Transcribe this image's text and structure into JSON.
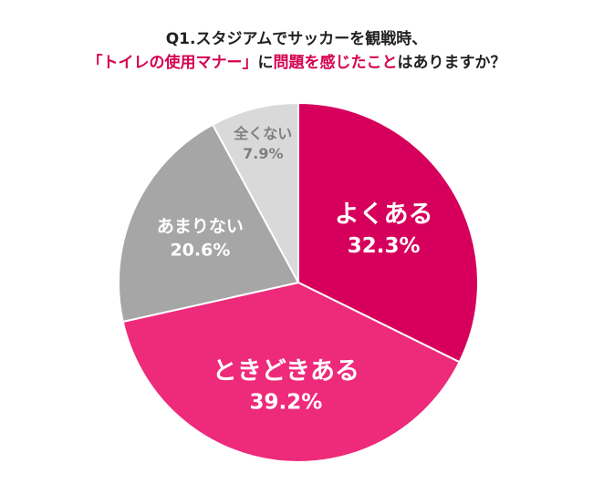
{
  "title": {
    "line1": "Q1.スタジアムでサッカーを観戦時、",
    "line2_highlight_a": "「トイレの使用マナー」",
    "line2_plain_a": "に",
    "line2_highlight_b": "問題を感じたこと",
    "line2_plain_b": "はありますか？"
  },
  "colors": {
    "highlight": "#d6004f",
    "title_text": "#222222"
  },
  "chart_data": {
    "type": "pie",
    "start_angle_deg": 0,
    "direction": "clockwise",
    "slices": [
      {
        "label": "よくある",
        "value": 32.3,
        "value_label": "32.3%",
        "color": "#d6005c",
        "text_color": "#ffffff"
      },
      {
        "label": "ときどきある",
        "value": 39.2,
        "value_label": "39.2%",
        "color": "#ee2a7b",
        "text_color": "#ffffff"
      },
      {
        "label": "あまりない",
        "value": 20.6,
        "value_label": "20.6%",
        "color": "#a6a6a6",
        "text_color": "#ffffff"
      },
      {
        "label": "全くない",
        "value": 7.9,
        "value_label": "7.9%",
        "color": "#d9d9d9",
        "text_color": "#7f7f7f"
      }
    ]
  }
}
